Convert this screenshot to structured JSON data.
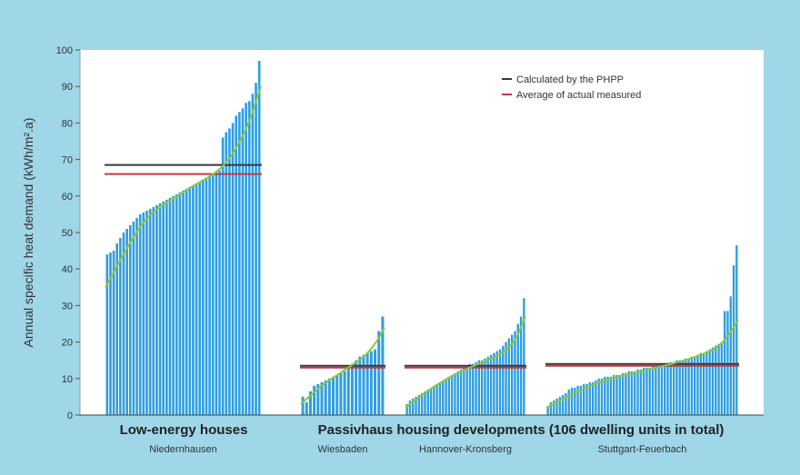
{
  "chart_data": {
    "type": "bar",
    "ylabel": "Annual specific heat demand (kWh/m².a)",
    "ylim": [
      0,
      100
    ],
    "yticks": [
      0,
      10,
      20,
      30,
      40,
      50,
      60,
      70,
      80,
      90,
      100
    ],
    "grid": false,
    "legend_position": "top-right",
    "legend": [
      {
        "label": "Calculated by the PHPP",
        "color": "#3b3340"
      },
      {
        "label": "Average of actual measured",
        "color": "#c6393c"
      }
    ],
    "group_titles": [
      "Low-energy houses",
      "Passivhaus housing developments (106 dwelling units in total)"
    ],
    "colors": {
      "bar": "#2e9ee0",
      "trend": "#8cc63f",
      "calculated": "#3b3340",
      "measured": "#c6393c",
      "panel": "#ffffff",
      "background": "#9fd6e8"
    },
    "series": [
      {
        "name": "Niedernhausen",
        "values": [
          44,
          44.5,
          45,
          47,
          48.5,
          50,
          51,
          52,
          53,
          54,
          55,
          55.5,
          56,
          56.5,
          57,
          57.5,
          58,
          58.5,
          59,
          59.5,
          60,
          60.5,
          61,
          61.5,
          62,
          62.5,
          63,
          63.5,
          64,
          64.5,
          65,
          65.5,
          66,
          66.5,
          67,
          76,
          77.5,
          78.5,
          80,
          82,
          83,
          84,
          85.5,
          86,
          88,
          91,
          97
        ],
        "calculated": 68.5,
        "measured_average": 66,
        "trend": [
          [
            0,
            35
          ],
          [
            0.25,
            53
          ],
          [
            0.5,
            61
          ],
          [
            0.75,
            68
          ],
          [
            0.9,
            78
          ],
          [
            1,
            90
          ]
        ]
      },
      {
        "name": "Wiesbaden",
        "values": [
          5,
          3.5,
          6.5,
          8,
          8.5,
          9,
          9.5,
          10,
          10.5,
          11,
          11.5,
          12,
          13,
          14,
          15,
          16,
          16.5,
          17,
          17.5,
          18,
          23,
          27
        ],
        "calculated": 13.5,
        "measured_average": 13,
        "trend": [
          [
            0,
            3
          ],
          [
            0.25,
            8
          ],
          [
            0.5,
            12
          ],
          [
            0.75,
            16
          ],
          [
            0.9,
            20
          ],
          [
            1,
            24
          ]
        ]
      },
      {
        "name": "Hannover-Kronsberg",
        "values": [
          3,
          4,
          4.5,
          5,
          5.5,
          6,
          6.5,
          7,
          7.5,
          8,
          8.5,
          9,
          9.5,
          10,
          10.5,
          11,
          11.5,
          12,
          12.5,
          13,
          13.5,
          14,
          14,
          14.5,
          15,
          15,
          15.5,
          16,
          16.5,
          17,
          17.5,
          18,
          19,
          20,
          21,
          22,
          23,
          25,
          27,
          32
        ],
        "calculated": 13.5,
        "measured_average": 13,
        "trend": [
          [
            0,
            2
          ],
          [
            0.25,
            8
          ],
          [
            0.5,
            12.5
          ],
          [
            0.75,
            16
          ],
          [
            0.9,
            20
          ],
          [
            1,
            27
          ]
        ]
      },
      {
        "name": "Stuttgart-Feuerbach",
        "values": [
          2.5,
          3.5,
          4,
          4.5,
          5,
          5.5,
          6,
          7,
          7.5,
          7.5,
          8,
          8,
          8.5,
          8.5,
          9,
          9,
          9.5,
          10,
          10,
          10.5,
          10.5,
          10.5,
          11,
          11,
          11,
          11.5,
          11.5,
          12,
          12,
          12,
          12.5,
          12.5,
          13,
          13,
          13,
          13.5,
          13.5,
          13.5,
          14,
          14,
          14,
          14.5,
          14.5,
          15,
          15,
          15,
          15.5,
          15.5,
          16,
          16,
          16.5,
          17,
          17,
          17.5,
          18,
          18.5,
          19,
          19.5,
          20,
          28.5,
          28.5,
          32.5,
          41,
          46.5
        ],
        "calculated": 14,
        "measured_average": 13.5,
        "trend": [
          [
            0,
            2
          ],
          [
            0.25,
            8.5
          ],
          [
            0.5,
            12
          ],
          [
            0.75,
            15.5
          ],
          [
            0.9,
            19
          ],
          [
            1,
            26
          ]
        ]
      }
    ]
  }
}
